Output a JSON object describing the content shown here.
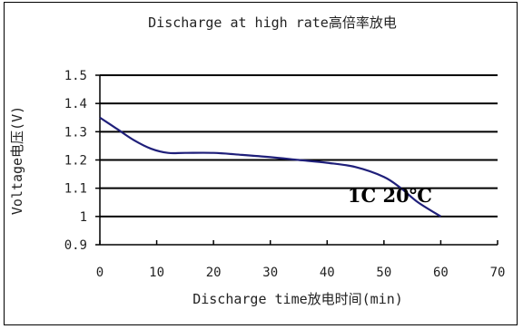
{
  "chart_data": {
    "type": "line",
    "title": "Discharge at high rate高倍率放电",
    "xlabel": "Discharge time放电时间(min)",
    "ylabel": "Voltage电压(V)",
    "xlim": [
      0,
      70
    ],
    "ylim": [
      0.9,
      1.5
    ],
    "x_ticks": [
      0,
      10,
      20,
      30,
      40,
      50,
      60,
      70
    ],
    "y_ticks": [
      0.9,
      1,
      1.1,
      1.2,
      1.3,
      1.4,
      1.5
    ],
    "x_tick_labels": [
      "0",
      "10",
      "20",
      "30",
      "40",
      "50",
      "60",
      "70"
    ],
    "y_tick_labels": [
      "0.9",
      "1",
      "1.1",
      "1.2",
      "1.3",
      "1.4",
      "1.5"
    ],
    "grid": "horizontal",
    "legend": "none",
    "series": [
      {
        "color": "#1f1f7a",
        "x": [
          0,
          3,
          6,
          9,
          12,
          15,
          20,
          25,
          30,
          35,
          40,
          45,
          50,
          53,
          56,
          60
        ],
        "y": [
          1.35,
          1.31,
          1.27,
          1.24,
          1.225,
          1.225,
          1.225,
          1.218,
          1.21,
          1.2,
          1.19,
          1.175,
          1.14,
          1.1,
          1.05,
          1.0
        ]
      }
    ],
    "annotations": [
      {
        "text": "1C 20℃",
        "x": 50,
        "y": 1.08
      }
    ]
  }
}
